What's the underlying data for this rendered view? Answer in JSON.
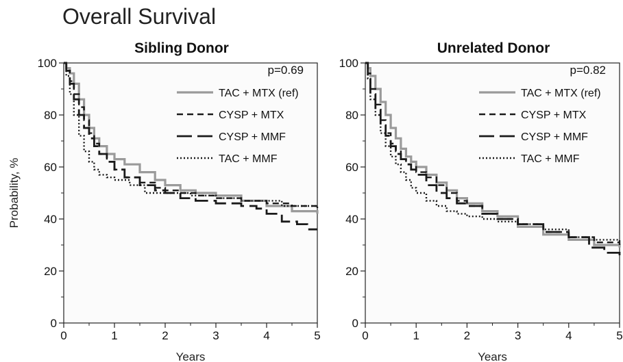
{
  "figure_title": "Overall Survival",
  "chart_data": [
    {
      "type": "line",
      "title": "Sibling Donor",
      "xlabel": "Years",
      "ylabel": "Probability, %",
      "xlim": [
        0,
        5
      ],
      "ylim": [
        0,
        100
      ],
      "x_ticks": [
        0,
        1,
        2,
        3,
        4,
        5
      ],
      "y_ticks": [
        0,
        20,
        40,
        60,
        80,
        100
      ],
      "annotation": "p=0.69",
      "legend_position": "top-right",
      "series": [
        {
          "name": "TAC + MTX (ref)",
          "color": "#9a9a9a",
          "style": "solid",
          "x": [
            0,
            0.05,
            0.12,
            0.2,
            0.3,
            0.4,
            0.5,
            0.6,
            0.7,
            0.85,
            1.0,
            1.2,
            1.5,
            1.8,
            2.0,
            2.3,
            2.6,
            3.0,
            3.5,
            4.0,
            4.5,
            5.0
          ],
          "y": [
            100,
            98,
            96,
            92,
            86,
            80,
            75,
            71,
            68,
            65,
            63,
            61,
            58,
            55,
            53,
            51,
            50,
            49,
            47,
            45,
            43,
            42
          ]
        },
        {
          "name": "CYSP + MTX",
          "color": "#1a1a1a",
          "style": "short-dash",
          "x": [
            0,
            0.05,
            0.12,
            0.2,
            0.3,
            0.4,
            0.5,
            0.6,
            0.7,
            0.85,
            1.0,
            1.2,
            1.5,
            1.8,
            2.0,
            2.3,
            2.6,
            3.0,
            3.5,
            4.0,
            4.5,
            5.0
          ],
          "y": [
            100,
            97,
            93,
            88,
            83,
            78,
            73,
            69,
            65,
            62,
            59,
            56,
            54,
            52,
            51,
            50,
            49,
            48,
            47,
            46,
            45,
            44
          ]
        },
        {
          "name": "CYSP + MMF",
          "color": "#1a1a1a",
          "style": "long-dash",
          "x": [
            0,
            0.05,
            0.12,
            0.2,
            0.3,
            0.4,
            0.5,
            0.6,
            0.7,
            0.85,
            1.0,
            1.2,
            1.5,
            1.8,
            2.0,
            2.3,
            2.6,
            3.0,
            3.5,
            3.8,
            4.0,
            4.3,
            4.6,
            4.8,
            5.0
          ],
          "y": [
            100,
            97,
            92,
            86,
            80,
            75,
            71,
            68,
            65,
            62,
            59,
            56,
            53,
            51,
            50,
            48,
            47,
            46,
            45,
            44,
            42,
            39,
            38,
            36,
            36
          ]
        },
        {
          "name": "TAC + MMF",
          "color": "#1a1a1a",
          "style": "dotted",
          "x": [
            0,
            0.05,
            0.12,
            0.2,
            0.3,
            0.4,
            0.5,
            0.6,
            0.7,
            0.85,
            1.0,
            1.3,
            1.6,
            2.0,
            2.5,
            3.0,
            3.5,
            4.0,
            4.3,
            4.6,
            5.0
          ],
          "y": [
            100,
            95,
            88,
            80,
            72,
            66,
            62,
            59,
            57,
            56,
            55,
            53,
            50,
            50,
            49,
            48,
            47,
            47,
            45,
            45,
            44
          ]
        }
      ]
    },
    {
      "type": "line",
      "title": "Unrelated Donor",
      "xlabel": "Years",
      "ylabel": "",
      "xlim": [
        0,
        5
      ],
      "ylim": [
        0,
        100
      ],
      "x_ticks": [
        0,
        1,
        2,
        3,
        4,
        5
      ],
      "y_ticks": [
        0,
        20,
        40,
        60,
        80,
        100
      ],
      "annotation": "p=0.82",
      "legend_position": "top-right",
      "series": [
        {
          "name": "TAC + MTX (ref)",
          "color": "#9a9a9a",
          "style": "solid",
          "x": [
            0,
            0.05,
            0.1,
            0.2,
            0.3,
            0.4,
            0.5,
            0.6,
            0.7,
            0.8,
            0.9,
            1.0,
            1.2,
            1.4,
            1.6,
            1.8,
            2.0,
            2.3,
            2.6,
            3.0,
            3.5,
            4.0,
            4.5,
            5.0
          ],
          "y": [
            100,
            98,
            95,
            90,
            85,
            80,
            75,
            71,
            67,
            64,
            62,
            60,
            57,
            54,
            51,
            48,
            46,
            43,
            41,
            37,
            34,
            32,
            30,
            29
          ]
        },
        {
          "name": "CYSP + MTX",
          "color": "#1a1a1a",
          "style": "short-dash",
          "x": [
            0,
            0.05,
            0.1,
            0.2,
            0.3,
            0.4,
            0.5,
            0.6,
            0.7,
            0.8,
            0.9,
            1.0,
            1.2,
            1.4,
            1.6,
            1.8,
            2.0,
            2.3,
            2.6,
            3.0,
            3.5,
            4.0,
            4.5,
            5.0
          ],
          "y": [
            100,
            96,
            90,
            84,
            78,
            73,
            69,
            66,
            63,
            61,
            60,
            58,
            56,
            53,
            50,
            47,
            45,
            42,
            40,
            38,
            35,
            33,
            31,
            30
          ]
        },
        {
          "name": "CYSP + MMF",
          "color": "#1a1a1a",
          "style": "long-dash",
          "x": [
            0,
            0.05,
            0.1,
            0.2,
            0.3,
            0.4,
            0.5,
            0.6,
            0.7,
            0.8,
            0.9,
            1.0,
            1.2,
            1.4,
            1.6,
            1.8,
            2.0,
            2.3,
            2.6,
            3.0,
            3.5,
            4.0,
            4.4,
            4.7,
            5.0
          ],
          "y": [
            100,
            95,
            88,
            82,
            76,
            72,
            68,
            65,
            63,
            61,
            59,
            57,
            53,
            50,
            48,
            46,
            45,
            42,
            40,
            38,
            35,
            33,
            29,
            27,
            26
          ]
        },
        {
          "name": "TAC + MMF",
          "color": "#1a1a1a",
          "style": "dotted",
          "x": [
            0,
            0.05,
            0.1,
            0.2,
            0.3,
            0.4,
            0.5,
            0.6,
            0.7,
            0.8,
            0.9,
            1.0,
            1.2,
            1.4,
            1.6,
            1.8,
            2.0,
            2.3,
            2.6,
            3.0,
            3.5,
            4.0,
            4.5,
            5.0
          ],
          "y": [
            100,
            94,
            86,
            80,
            73,
            68,
            64,
            61,
            58,
            55,
            52,
            50,
            47,
            45,
            43,
            42,
            41,
            40,
            39,
            38,
            36,
            33,
            32,
            31
          ]
        }
      ]
    }
  ]
}
